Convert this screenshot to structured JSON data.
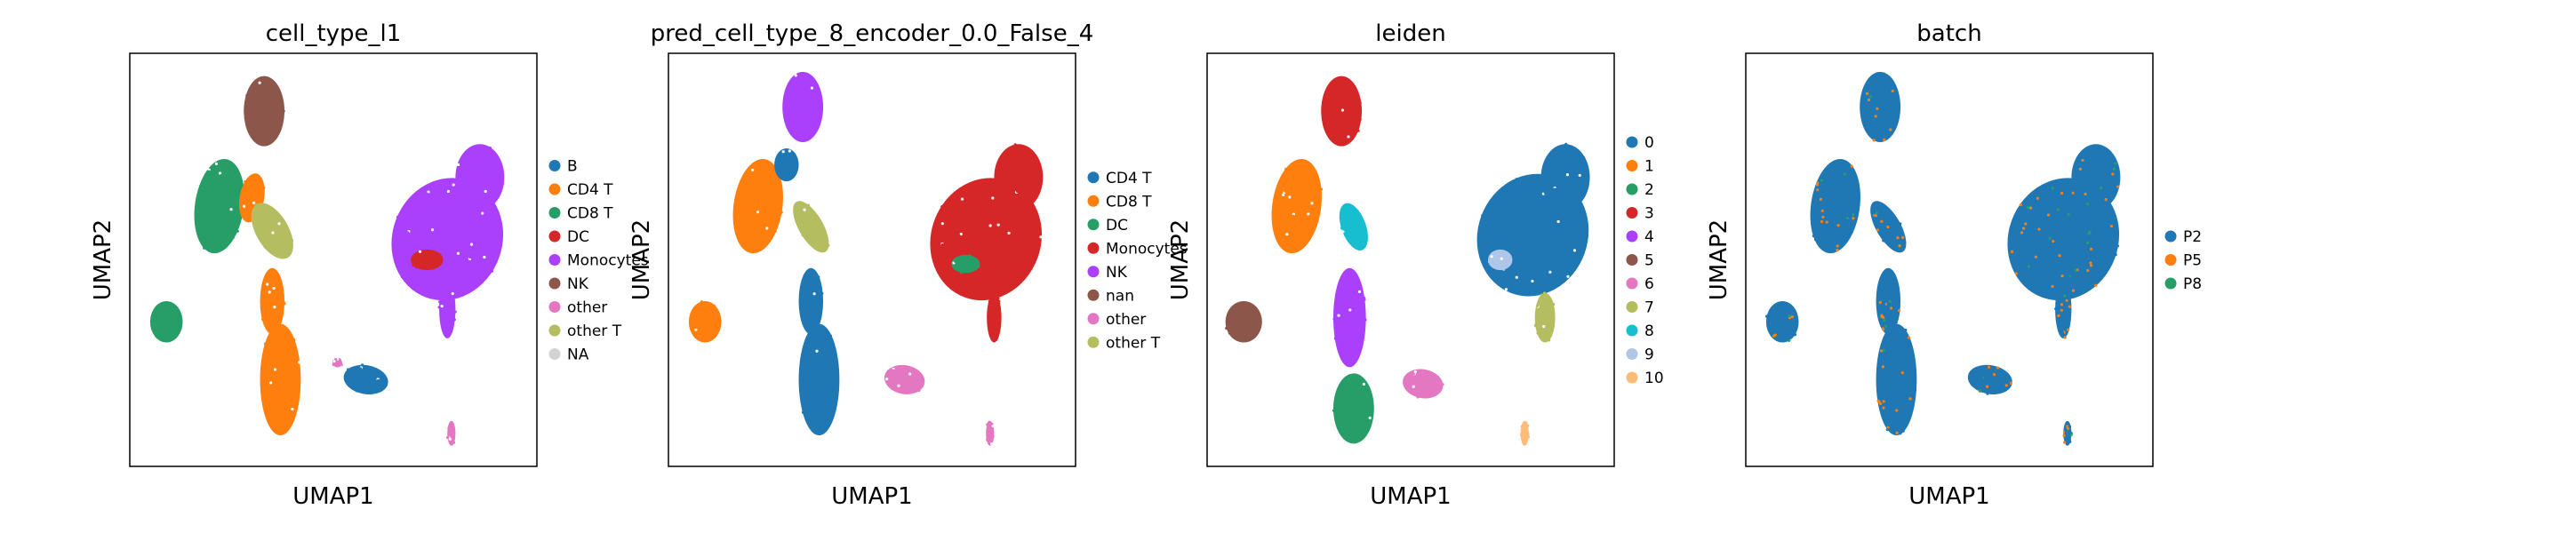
{
  "figure": {
    "chart_data": [
      {
        "type": "scatter",
        "title": "cell_type_l1",
        "xlabel": "UMAP1",
        "ylabel": "UMAP2",
        "grid": false,
        "ticks": false,
        "legend_placement": "right",
        "legend": [
          {
            "label": "B",
            "color": "#1f77b4"
          },
          {
            "label": "CD4 T",
            "color": "#ff7f0e"
          },
          {
            "label": "CD8 T",
            "color": "#279e68"
          },
          {
            "label": "DC",
            "color": "#d62728"
          },
          {
            "label": "Monocytes",
            "color": "#aa40fc"
          },
          {
            "label": "NK",
            "color": "#8c564b"
          },
          {
            "label": "other",
            "color": "#e377c2"
          },
          {
            "label": "other T",
            "color": "#b5bd61"
          },
          {
            "label": "NA",
            "color": "#d3d3d3"
          }
        ]
      },
      {
        "type": "scatter",
        "title": "pred_cell_type_8_encoder_0.0_False_4",
        "xlabel": "UMAP1",
        "ylabel": "UMAP2",
        "grid": false,
        "ticks": false,
        "legend_placement": "right",
        "legend": [
          {
            "label": "CD4 T",
            "color": "#1f77b4"
          },
          {
            "label": "CD8 T",
            "color": "#ff7f0e"
          },
          {
            "label": "DC",
            "color": "#279e68"
          },
          {
            "label": "Monocytes",
            "color": "#d62728"
          },
          {
            "label": "NK",
            "color": "#aa40fc"
          },
          {
            "label": "nan",
            "color": "#8c564b"
          },
          {
            "label": "other",
            "color": "#e377c2"
          },
          {
            "label": "other T",
            "color": "#b5bd61"
          }
        ]
      },
      {
        "type": "scatter",
        "title": "leiden",
        "xlabel": "UMAP1",
        "ylabel": "UMAP2",
        "grid": false,
        "ticks": false,
        "legend_placement": "right",
        "legend": [
          {
            "label": "0",
            "color": "#1f77b4"
          },
          {
            "label": "1",
            "color": "#ff7f0e"
          },
          {
            "label": "2",
            "color": "#279e68"
          },
          {
            "label": "3",
            "color": "#d62728"
          },
          {
            "label": "4",
            "color": "#aa40fc"
          },
          {
            "label": "5",
            "color": "#8c564b"
          },
          {
            "label": "6",
            "color": "#e377c2"
          },
          {
            "label": "7",
            "color": "#b5bd61"
          },
          {
            "label": "8",
            "color": "#17becf"
          },
          {
            "label": "9",
            "color": "#aec7e8"
          },
          {
            "label": "10",
            "color": "#ffbb78"
          }
        ]
      },
      {
        "type": "scatter",
        "title": "batch",
        "xlabel": "UMAP1",
        "ylabel": "UMAP2",
        "grid": false,
        "ticks": false,
        "legend_placement": "right",
        "legend": [
          {
            "label": "P2",
            "color": "#1f77b4"
          },
          {
            "label": "P5",
            "color": "#ff7f0e"
          },
          {
            "label": "P8",
            "color": "#279e68"
          }
        ]
      }
    ]
  }
}
